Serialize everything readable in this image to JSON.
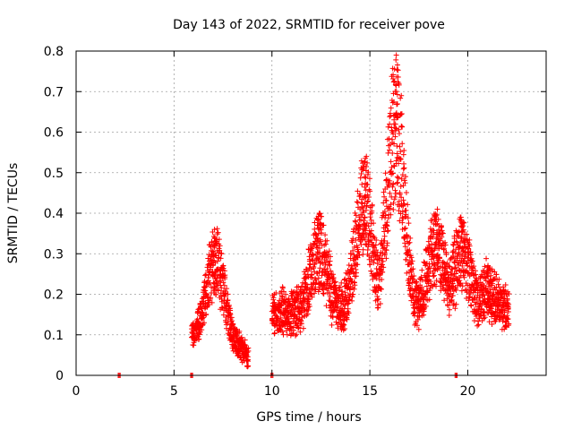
{
  "chart_data": {
    "type": "scatter",
    "title": "Day 143 of 2022, SRMTID for receiver pove",
    "xlabel": "GPS time / hours",
    "ylabel": "SRMTID / TECUs",
    "xlim": [
      0,
      24
    ],
    "ylim": [
      0,
      0.8
    ],
    "x_ticks": [
      "0",
      "5",
      "10",
      "15",
      "20"
    ],
    "y_ticks": [
      "0",
      "0.1",
      "0.2",
      "0.3",
      "0.4",
      "0.5",
      "0.6",
      "0.7",
      "0.8"
    ],
    "grid": true,
    "marker": "plus",
    "series_color": "#ff0000",
    "segments": [
      {
        "x_start": 5.9,
        "x_end": 8.8,
        "baseline": 0.12,
        "spread": 0.04
      },
      {
        "x_start": 10.0,
        "x_end": 22.1,
        "baseline": 0.2,
        "spread": 0.06
      }
    ],
    "peaks": [
      {
        "x": 7.1,
        "y": 0.36
      },
      {
        "x": 12.4,
        "y": 0.4
      },
      {
        "x": 14.7,
        "y": 0.54
      },
      {
        "x": 16.3,
        "y": 0.79
      },
      {
        "x": 18.4,
        "y": 0.41
      },
      {
        "x": 19.7,
        "y": 0.39
      },
      {
        "x": 21.1,
        "y": 0.27
      }
    ],
    "zero_points": [
      {
        "x": 2.2,
        "y": 0
      },
      {
        "x": 5.9,
        "y": 0
      },
      {
        "x": 10.0,
        "y": 0
      },
      {
        "x": 19.4,
        "y": 0
      }
    ]
  }
}
